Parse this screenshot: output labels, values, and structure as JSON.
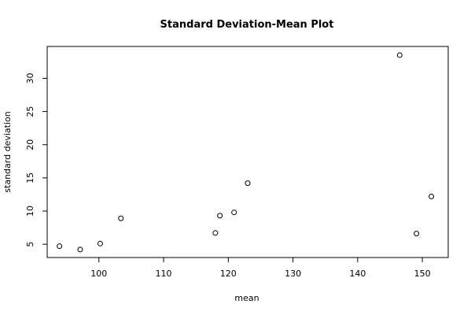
{
  "chart_data": {
    "type": "scatter",
    "title": "Standard Deviation-Mean Plot",
    "xlabel": "mean",
    "ylabel": "standard deviation",
    "xlim": [
      92.0,
      154.0
    ],
    "ylim": [
      3.0,
      34.8
    ],
    "x_ticks": [
      100,
      110,
      120,
      130,
      140,
      150
    ],
    "y_ticks": [
      5,
      10,
      15,
      20,
      25,
      30
    ],
    "grid": false,
    "points": [
      {
        "x": 93.9,
        "y": 4.7
      },
      {
        "x": 97.1,
        "y": 4.2
      },
      {
        "x": 100.2,
        "y": 5.1
      },
      {
        "x": 103.4,
        "y": 8.9
      },
      {
        "x": 118.0,
        "y": 6.7
      },
      {
        "x": 118.7,
        "y": 9.3
      },
      {
        "x": 120.9,
        "y": 9.8
      },
      {
        "x": 123.0,
        "y": 14.2
      },
      {
        "x": 146.5,
        "y": 33.5
      },
      {
        "x": 149.1,
        "y": 6.6
      },
      {
        "x": 151.4,
        "y": 12.2
      }
    ]
  }
}
